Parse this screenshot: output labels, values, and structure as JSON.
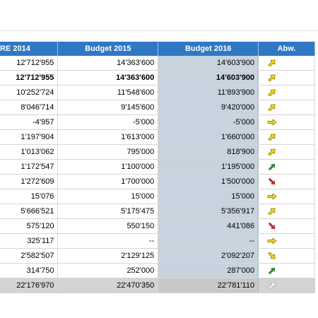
{
  "header": {
    "col1": "RE 2014",
    "col2": "Budget 2015",
    "col3": "Budget 2016",
    "col4": "Abw."
  },
  "colors": {
    "header_bg": "#2f78c4",
    "budget2016_bg": "#c7d3de",
    "total_bg": "#d3d3d3",
    "arrow_yellow": "#f2dc18",
    "arrow_green": "#2f8a3a",
    "arrow_red": "#c62828",
    "arrow_grey": "#b8b8b8"
  },
  "rows": [
    {
      "re2014": "12'712'955",
      "b2015": "14'363'600",
      "b2016": "14'603'900",
      "abw": "up-right-yellow",
      "style": "normal"
    },
    {
      "re2014": "12'712'955",
      "b2015": "14'363'600",
      "b2016": "14'603'900",
      "abw": "up-right-yellow",
      "style": "bold"
    },
    {
      "re2014": "10'252'724",
      "b2015": "11'548'600",
      "b2016": "11'893'900",
      "abw": "up-right-yellow",
      "style": "normal"
    },
    {
      "re2014": "8'046'714",
      "b2015": "9'145'600",
      "b2016": "9'420'000",
      "abw": "up-right-yellow",
      "style": "normal"
    },
    {
      "re2014": "-4'957",
      "b2015": "-5'000",
      "b2016": "-5'000",
      "abw": "right-yellow",
      "style": "normal"
    },
    {
      "re2014": "1'197'904",
      "b2015": "1'613'000",
      "b2016": "1'660'000",
      "abw": "up-right-yellow",
      "style": "normal"
    },
    {
      "re2014": "1'013'062",
      "b2015": "795'000",
      "b2016": "818'900",
      "abw": "up-right-yellow",
      "style": "normal"
    },
    {
      "re2014": "1'172'547",
      "b2015": "1'100'000",
      "b2016": "1'195'000",
      "abw": "up-right-green",
      "style": "normal"
    },
    {
      "re2014": "1'272'609",
      "b2015": "1'700'000",
      "b2016": "1'500'000",
      "abw": "down-right-red",
      "style": "normal"
    },
    {
      "re2014": "15'076",
      "b2015": "15'000",
      "b2016": "15'000",
      "abw": "right-yellow",
      "style": "normal"
    },
    {
      "re2014": "5'666'521",
      "b2015": "5'175'475",
      "b2016": "5'356'917",
      "abw": "up-right-yellow",
      "style": "normal"
    },
    {
      "re2014": "575'120",
      "b2015": "550'150",
      "b2016": "441'086",
      "abw": "down-right-red",
      "style": "normal"
    },
    {
      "re2014": "325'117",
      "b2015": "--",
      "b2016": "--",
      "abw": "right-yellow",
      "style": "normal"
    },
    {
      "re2014": "2'582'507",
      "b2015": "2'129'125",
      "b2016": "2'092'207",
      "abw": "down-right-yellow",
      "style": "normal"
    },
    {
      "re2014": "314'750",
      "b2015": "252'000",
      "b2016": "287'000",
      "abw": "up-right-green",
      "style": "normal"
    },
    {
      "re2014": "22'176'970",
      "b2015": "22'470'350",
      "b2016": "22'781'110",
      "abw": "up-right-grey",
      "style": "total"
    }
  ]
}
